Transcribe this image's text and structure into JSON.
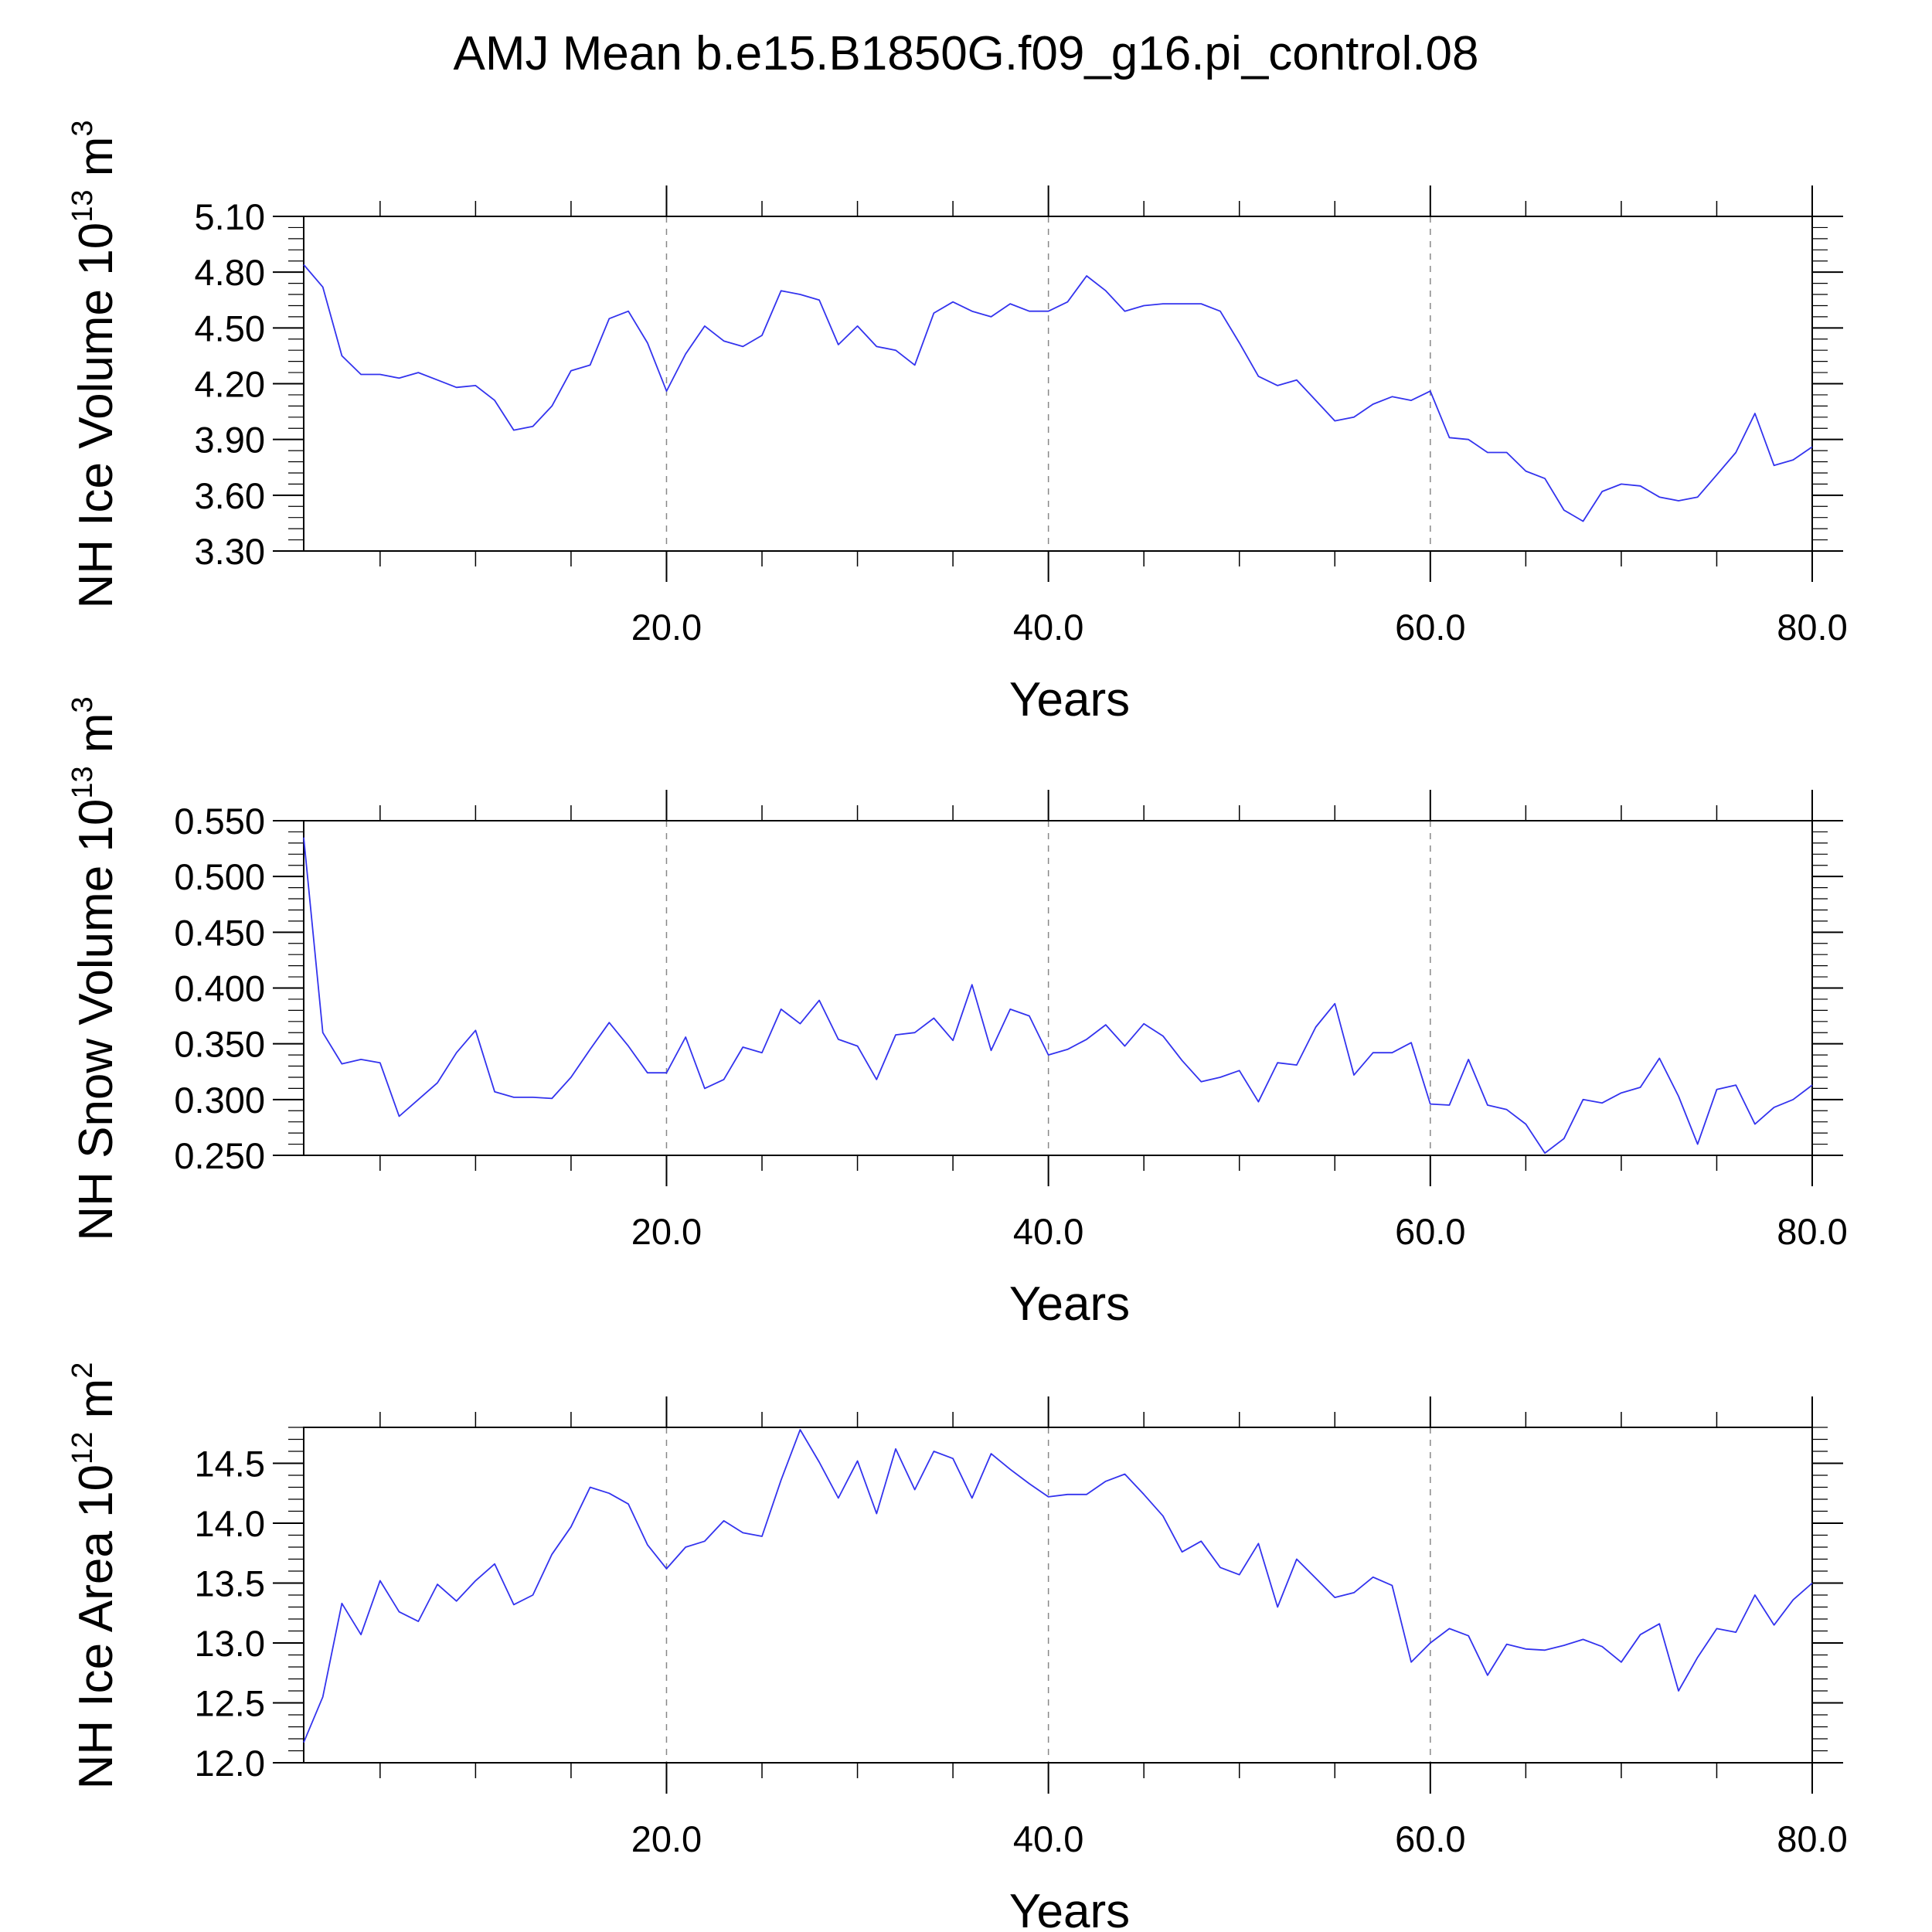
{
  "title": "AMJ Mean b.e15.B1850G.f09_g16.pi_control.08",
  "colors": {
    "series": "#3333ee",
    "axis": "#000000",
    "grid": "#888888"
  },
  "chart_data": [
    {
      "type": "line",
      "ylabel": {
        "main": "NH Ice Volume 10",
        "exp": "13",
        "unit": " m",
        "unit_exp": "3"
      },
      "xlabel": "Years",
      "xlim": [
        1,
        80
      ],
      "ylim": [
        3.3,
        5.1
      ],
      "ytick_values": [
        3.3,
        3.6,
        3.9,
        4.2,
        4.5,
        4.8,
        5.1
      ],
      "ytick_labels": [
        "3.30",
        "3.60",
        "3.90",
        "4.20",
        "4.50",
        "4.80",
        "5.10"
      ],
      "xtick_values": [
        20,
        40,
        60,
        80
      ],
      "xtick_labels": [
        "20.0",
        "40.0",
        "60.0",
        "80.0"
      ],
      "grid": "vertical-dashed",
      "x_start": 1,
      "values": [
        4.84,
        4.72,
        4.35,
        4.25,
        4.25,
        4.23,
        4.26,
        4.22,
        4.18,
        4.19,
        4.11,
        3.95,
        3.97,
        4.08,
        4.27,
        4.3,
        4.55,
        4.59,
        4.42,
        4.16,
        4.36,
        4.51,
        4.43,
        4.4,
        4.46,
        4.7,
        4.68,
        4.65,
        4.41,
        4.51,
        4.4,
        4.38,
        4.3,
        4.58,
        4.64,
        4.59,
        4.56,
        4.63,
        4.59,
        4.59,
        4.64,
        4.78,
        4.7,
        4.59,
        4.62,
        4.63,
        4.63,
        4.63,
        4.59,
        4.42,
        4.24,
        4.19,
        4.22,
        4.11,
        4.0,
        4.02,
        4.09,
        4.13,
        4.11,
        4.16,
        3.91,
        3.9,
        3.83,
        3.83,
        3.73,
        3.69,
        3.52,
        3.46,
        3.62,
        3.66,
        3.65,
        3.59,
        3.57,
        3.59,
        3.71,
        3.83,
        4.04,
        3.76,
        3.79,
        3.86
      ]
    },
    {
      "type": "line",
      "ylabel": {
        "main": "NH Snow Volume 10",
        "exp": "13",
        "unit": " m",
        "unit_exp": "3"
      },
      "xlabel": "Years",
      "xlim": [
        1,
        80
      ],
      "ylim": [
        0.25,
        0.55
      ],
      "ytick_values": [
        0.25,
        0.3,
        0.35,
        0.4,
        0.45,
        0.5,
        0.55
      ],
      "ytick_labels": [
        "0.250",
        "0.300",
        "0.350",
        "0.400",
        "0.450",
        "0.500",
        "0.550"
      ],
      "xtick_values": [
        20,
        40,
        60,
        80
      ],
      "xtick_labels": [
        "20.0",
        "40.0",
        "60.0",
        "80.0"
      ],
      "grid": "vertical-dashed",
      "x_start": 1,
      "values": [
        0.535,
        0.36,
        0.332,
        0.336,
        0.333,
        0.285,
        0.3,
        0.315,
        0.342,
        0.362,
        0.307,
        0.302,
        0.302,
        0.301,
        0.32,
        0.345,
        0.369,
        0.348,
        0.324,
        0.324,
        0.356,
        0.31,
        0.318,
        0.347,
        0.342,
        0.381,
        0.368,
        0.389,
        0.354,
        0.348,
        0.318,
        0.358,
        0.36,
        0.373,
        0.353,
        0.403,
        0.344,
        0.381,
        0.375,
        0.34,
        0.345,
        0.354,
        0.367,
        0.348,
        0.368,
        0.357,
        0.335,
        0.316,
        0.32,
        0.326,
        0.298,
        0.333,
        0.331,
        0.365,
        0.386,
        0.322,
        0.342,
        0.342,
        0.351,
        0.296,
        0.295,
        0.336,
        0.295,
        0.291,
        0.278,
        0.252,
        0.265,
        0.3,
        0.297,
        0.306,
        0.311,
        0.337,
        0.303,
        0.26,
        0.309,
        0.313,
        0.278,
        0.293,
        0.3,
        0.313
      ]
    },
    {
      "type": "line",
      "ylabel": {
        "main": "NH Ice Area 10",
        "exp": "12",
        "unit": " m",
        "unit_exp": "2"
      },
      "xlabel": "Years",
      "xlim": [
        1,
        80
      ],
      "ylim": [
        12.0,
        14.8
      ],
      "ytick_values": [
        12.0,
        12.5,
        13.0,
        13.5,
        14.0,
        14.5
      ],
      "ytick_labels": [
        "12.0",
        "12.5",
        "13.0",
        "13.5",
        "14.0",
        "14.5"
      ],
      "xtick_values": [
        20,
        40,
        60,
        80
      ],
      "xtick_labels": [
        "20.0",
        "40.0",
        "60.0",
        "80.0"
      ],
      "grid": "vertical-dashed",
      "x_start": 1,
      "values": [
        12.17,
        12.55,
        13.33,
        13.07,
        13.52,
        13.26,
        13.18,
        13.49,
        13.35,
        13.52,
        13.66,
        13.32,
        13.4,
        13.74,
        13.97,
        14.3,
        14.25,
        14.16,
        13.82,
        13.62,
        13.8,
        13.85,
        14.02,
        13.92,
        13.89,
        14.36,
        14.78,
        14.51,
        14.21,
        14.52,
        14.08,
        14.62,
        14.28,
        14.6,
        14.54,
        14.21,
        14.58,
        14.45,
        14.33,
        14.22,
        14.24,
        14.24,
        14.35,
        14.41,
        14.24,
        14.06,
        13.76,
        13.85,
        13.63,
        13.57,
        13.83,
        13.3,
        13.7,
        13.54,
        13.38,
        13.42,
        13.55,
        13.48,
        12.84,
        13.0,
        13.12,
        13.06,
        12.73,
        12.99,
        12.95,
        12.94,
        12.98,
        13.03,
        12.97,
        12.84,
        13.07,
        13.16,
        12.6,
        12.88,
        13.12,
        13.09,
        13.4,
        13.15,
        13.36,
        13.5
      ]
    }
  ]
}
